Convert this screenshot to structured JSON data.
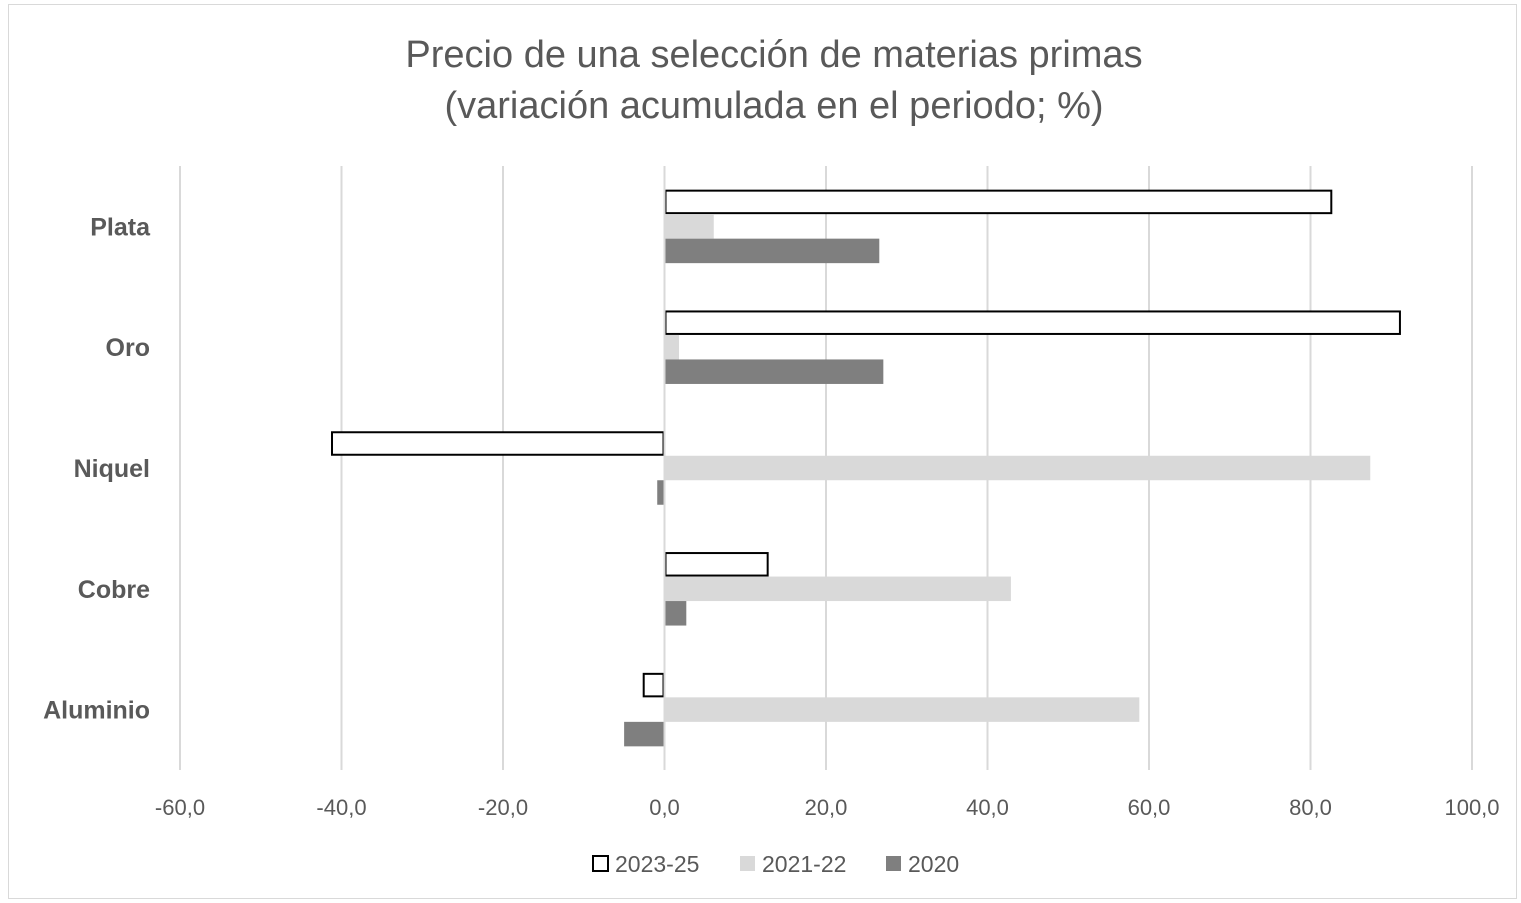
{
  "chart_data": {
    "type": "bar",
    "orientation": "horizontal",
    "title": [
      "Precio de una selección de materias primas",
      "(variación acumulada en el periodo; %)"
    ],
    "categories": [
      "Plata",
      "Oro",
      "Niquel",
      "Cobre",
      "Aluminio"
    ],
    "series": [
      {
        "name": "2023-25",
        "values": [
          82.7,
          91.2,
          -41.3,
          12.9,
          -2.7
        ],
        "fill": "#ffffff",
        "stroke": "#000000"
      },
      {
        "name": "2021-22",
        "values": [
          6.1,
          1.8,
          87.4,
          42.9,
          58.8
        ],
        "fill": "#d9d9d9",
        "stroke": "none"
      },
      {
        "name": "2020",
        "values": [
          26.6,
          27.1,
          -0.9,
          2.7,
          -5.0
        ],
        "fill": "#7f7f7f",
        "stroke": "none"
      }
    ],
    "xlim": [
      -60,
      100
    ],
    "xticks": [
      -60,
      -40,
      -20,
      0,
      20,
      40,
      60,
      80,
      100
    ],
    "xtick_labels": [
      "-60,0",
      "-40,0",
      "-20,0",
      "0,0",
      "20,0",
      "40,0",
      "60,0",
      "80,0",
      "100,0"
    ],
    "grid": true,
    "legend_position": "bottom"
  }
}
